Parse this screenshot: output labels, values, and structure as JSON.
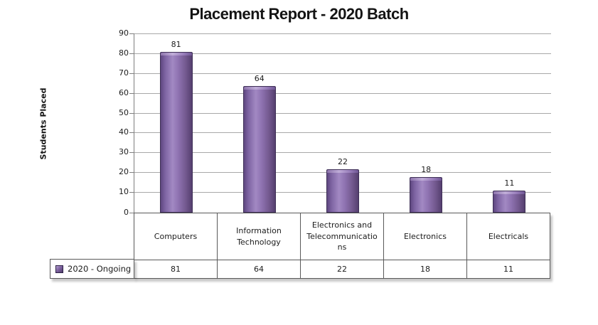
{
  "chart_data": {
    "type": "bar",
    "title": "Placement Report - 2020 Batch",
    "ylabel": "Students Placed",
    "xlabel": "",
    "categories": [
      "Computers",
      "Information Technology",
      "Electronics and Telecommunications",
      "Electronics",
      "Electricals"
    ],
    "series": [
      {
        "name": "2020 - Ongoing",
        "values": [
          81,
          64,
          22,
          18,
          11
        ]
      }
    ],
    "ylim": [
      0,
      90
    ],
    "yticks": [
      0,
      10,
      20,
      30,
      40,
      50,
      60,
      70,
      80,
      90
    ],
    "grid": true,
    "data_labels": true,
    "legend_position": "data-table-left",
    "colors": {
      "bar_fill": "#8064A2",
      "bar_border": "#3F3057",
      "gridline": "#A8A8A8",
      "axis_line": "#7F7F7F",
      "table_border": "#595959",
      "text": "#1C1C1C",
      "background": "#FFFFFF"
    }
  }
}
